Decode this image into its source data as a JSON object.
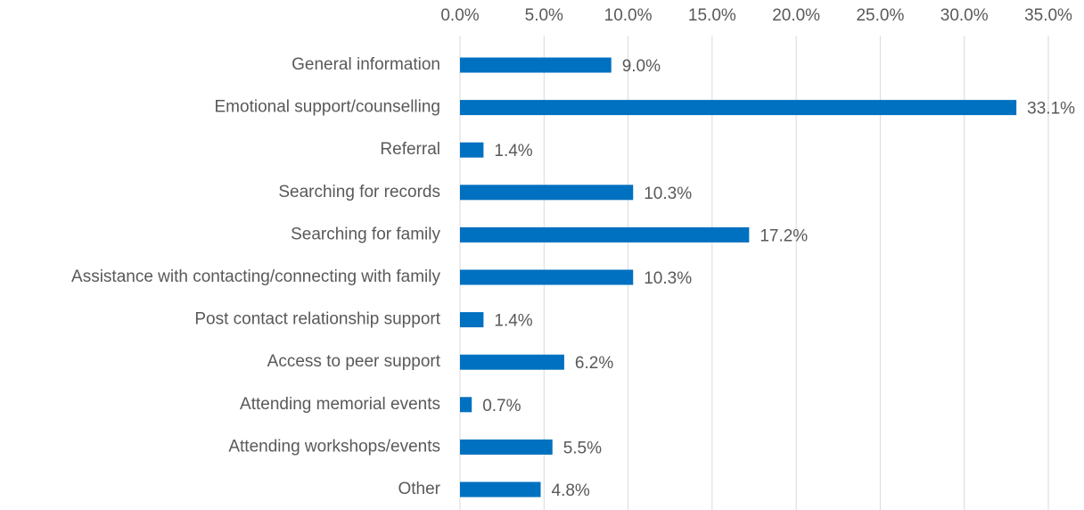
{
  "chart_data": {
    "type": "bar",
    "orientation": "horizontal",
    "categories": [
      "General information",
      "Emotional support/counselling",
      "Referral",
      "Searching for records",
      "Searching for family",
      "Assistance with contacting/connecting with family",
      "Post contact relationship support",
      "Access to peer support",
      "Attending memorial events",
      "Attending workshops/events",
      "Other"
    ],
    "values": [
      9.0,
      33.1,
      1.4,
      10.3,
      17.2,
      10.3,
      1.4,
      6.2,
      0.7,
      5.5,
      4.8
    ],
    "value_labels": [
      "9.0%",
      "33.1%",
      "1.4%",
      "10.3%",
      "17.2%",
      "10.3%",
      "1.4%",
      "6.2%",
      "0.7%",
      "5.5%",
      "4.8%"
    ],
    "color": "#0070c0",
    "xlim": [
      0,
      35
    ],
    "xticks": [
      {
        "value": 0,
        "label": "0.0%"
      },
      {
        "value": 5,
        "label": "5.0%"
      },
      {
        "value": 10,
        "label": "10.0%"
      },
      {
        "value": 15,
        "label": "15.0%"
      },
      {
        "value": 20,
        "label": "20.0%"
      },
      {
        "value": 25,
        "label": "25.0%"
      },
      {
        "value": 30,
        "label": "30.0%"
      },
      {
        "value": 35,
        "label": "35.0%"
      }
    ],
    "grid": true
  }
}
